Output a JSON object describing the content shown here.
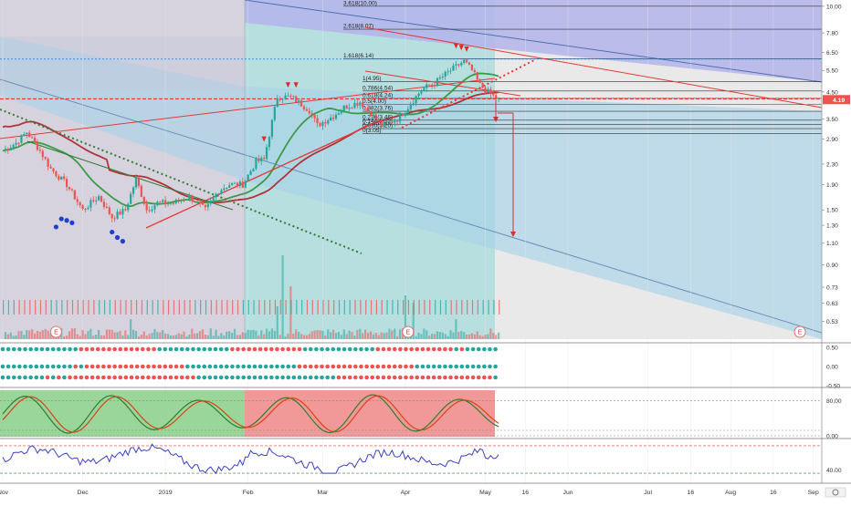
{
  "colors": {
    "up": "#26a69a",
    "down": "#ef5350",
    "ma_red": "#b2323c",
    "ma_green": "#3c9a4a",
    "trend_red": "#e53935",
    "trend_green": "#2e7d32",
    "fib": "#333333",
    "price_badge": "#ef5350",
    "rsi": "#3f3fc4",
    "arrow_down": "#d32f2f",
    "arrow_up": "#1565c0"
  },
  "chart_data": {
    "type": "line",
    "title": "",
    "xlabel": "",
    "ylabel": "",
    "y_scale": "log",
    "ylim": [
      0.45,
      10.6
    ],
    "price_ticks": [
      {
        "value": 10.0,
        "label": "10.00"
      },
      {
        "value": 7.8,
        "label": "7.80"
      },
      {
        "value": 6.5,
        "label": "6.50"
      },
      {
        "value": 5.5,
        "label": "5.50"
      },
      {
        "value": 4.5,
        "label": "4.50"
      },
      {
        "value": 3.5,
        "label": "3.50"
      },
      {
        "value": 2.9,
        "label": "2.90"
      },
      {
        "value": 2.3,
        "label": "2.30"
      },
      {
        "value": 1.9,
        "label": "1.90"
      },
      {
        "value": 1.5,
        "label": "1.50"
      },
      {
        "value": 1.3,
        "label": "1.30"
      },
      {
        "value": 1.1,
        "label": "1.10"
      },
      {
        "value": 0.9,
        "label": "0.90"
      },
      {
        "value": 0.73,
        "label": "0.73"
      },
      {
        "value": 0.63,
        "label": "0.63"
      },
      {
        "value": 0.53,
        "label": "0.53"
      }
    ],
    "last_price": {
      "value": 4.19,
      "label": "4.19"
    },
    "x_ticks": [
      {
        "day": 0,
        "label": "Nov"
      },
      {
        "day": 30,
        "label": "Dec"
      },
      {
        "day": 61,
        "label": "2019"
      },
      {
        "day": 92,
        "label": "Feb"
      },
      {
        "day": 120,
        "label": "Mar"
      },
      {
        "day": 151,
        "label": "Apr"
      },
      {
        "day": 181,
        "label": "May"
      },
      {
        "day": 196,
        "label": "16"
      },
      {
        "day": 212,
        "label": "Jun"
      },
      {
        "day": 242,
        "label": "Jul"
      },
      {
        "day": 258,
        "label": "16"
      },
      {
        "day": 273,
        "label": "Aug"
      },
      {
        "day": 289,
        "label": "16"
      },
      {
        "day": 304,
        "label": "Sep"
      }
    ],
    "fib_levels": [
      {
        "value": 10.0,
        "label": "3.618(10.00)"
      },
      {
        "value": 8.07,
        "label": "2.618(8.07)"
      },
      {
        "value": 6.14,
        "label": "1.618(6.14)"
      },
      {
        "value": 4.95,
        "label": "1(4.95)"
      },
      {
        "value": 4.54,
        "label": "0.786(4.54)"
      },
      {
        "value": 4.24,
        "label": "0.618(4.24)"
      },
      {
        "value": 4.0,
        "label": "0.5(4.00)"
      },
      {
        "value": 3.76,
        "label": "0.382(3.76)"
      },
      {
        "value": 3.46,
        "label": "0.236(3.46)"
      },
      {
        "value": 3.32,
        "label": "0.144(3.32)"
      },
      {
        "value": 3.2,
        "label": "0.090(3.20)"
      },
      {
        "value": 3.05,
        "label": "0(3.05)"
      }
    ],
    "earnings_markers": [
      {
        "day": 20,
        "label": "E"
      },
      {
        "day": 152,
        "label": "E"
      },
      {
        "day": 299,
        "label": "E"
      }
    ],
    "oscillator_ticks": [
      {
        "value": 0.5,
        "label": "0.50"
      },
      {
        "value": 0.0,
        "label": "0.00"
      },
      {
        "value": -0.5,
        "label": "-0.50"
      }
    ],
    "stoch_ticks": [
      {
        "value": 80,
        "label": "80.00"
      },
      {
        "value": 0,
        "label": "0.00"
      }
    ],
    "rsi_ticks": [
      {
        "value": 40,
        "label": "40.00"
      }
    ]
  }
}
